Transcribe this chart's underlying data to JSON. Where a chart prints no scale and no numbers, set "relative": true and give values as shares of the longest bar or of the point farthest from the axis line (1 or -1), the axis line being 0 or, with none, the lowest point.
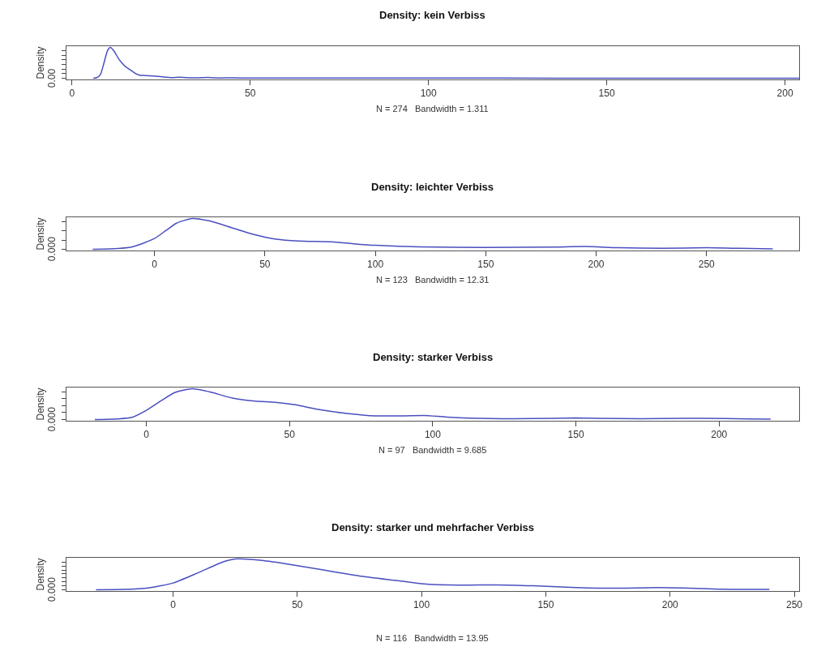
{
  "chart_data": [
    {
      "type": "line",
      "title": "Density: kein Verbiss",
      "xlabel": "N = 274   Bandwidth = 1.311",
      "ylabel": "Density",
      "relative": true,
      "color": "#4a4ec0",
      "xlim": [
        -1.6,
        204
      ],
      "xticks": [
        0,
        50,
        100,
        150,
        200
      ],
      "annotations": [
        "0.00"
      ],
      "marker": "none",
      "line_style": "solid",
      "x": [
        6,
        7,
        8,
        9,
        10,
        10.8,
        12,
        13,
        14,
        15,
        16,
        17,
        18,
        19,
        20,
        22,
        25,
        28,
        30,
        32,
        35,
        38,
        40,
        45,
        50,
        60,
        80,
        100,
        120,
        150,
        180,
        200,
        204
      ],
      "values": [
        0,
        0.02,
        0.12,
        0.5,
        0.9,
        1.0,
        0.85,
        0.65,
        0.5,
        0.38,
        0.3,
        0.22,
        0.14,
        0.1,
        0.09,
        0.08,
        0.05,
        0.02,
        0.03,
        0.02,
        0.01,
        0.025,
        0.01,
        0.01,
        0.005,
        0.004,
        0.003,
        0.003,
        0.003,
        0.002,
        0.002,
        0.002,
        0
      ]
    },
    {
      "type": "line",
      "title": "Density: leichter Verbiss",
      "xlabel": "N = 123   Bandwidth = 12.31",
      "ylabel": "Density",
      "relative": true,
      "color": "#4a4ec0",
      "xlim": [
        -40,
        292
      ],
      "xticks": [
        0,
        50,
        100,
        150,
        200,
        250
      ],
      "annotations": [
        "0.000"
      ],
      "marker": "none",
      "line_style": "solid",
      "x": [
        -28,
        -20,
        -10,
        0,
        5,
        10,
        17,
        25,
        35,
        45,
        55,
        65,
        80,
        90,
        100,
        120,
        150,
        180,
        195,
        210,
        230,
        250,
        265,
        280
      ],
      "values": [
        0,
        0.01,
        0.08,
        0.35,
        0.6,
        0.85,
        1.0,
        0.92,
        0.7,
        0.48,
        0.33,
        0.27,
        0.24,
        0.18,
        0.13,
        0.08,
        0.06,
        0.07,
        0.09,
        0.05,
        0.03,
        0.05,
        0.03,
        0.01
      ]
    },
    {
      "type": "line",
      "title": "Density: starker Verbiss",
      "xlabel": "N = 97   Bandwidth = 9.685",
      "ylabel": "Density",
      "relative": true,
      "color": "#4a4ec0",
      "xlim": [
        -28,
        228
      ],
      "xticks": [
        0,
        50,
        100,
        150,
        200
      ],
      "annotations": [
        "0.000"
      ],
      "marker": "none",
      "line_style": "solid",
      "x": [
        -18,
        -10,
        -5,
        0,
        5,
        10,
        16,
        22,
        30,
        38,
        45,
        52,
        60,
        70,
        80,
        90,
        97,
        105,
        120,
        135,
        150,
        165,
        180,
        195,
        210,
        218
      ],
      "values": [
        0,
        0.02,
        0.07,
        0.3,
        0.6,
        0.88,
        1.0,
        0.9,
        0.7,
        0.6,
        0.56,
        0.48,
        0.33,
        0.2,
        0.12,
        0.12,
        0.13,
        0.08,
        0.03,
        0.03,
        0.05,
        0.03,
        0.03,
        0.04,
        0.02,
        0.01
      ]
    },
    {
      "type": "line",
      "title": "Density: starker und mehrfacher Verbiss",
      "xlabel": "N = 116   Bandwidth = 13.95",
      "ylabel": "Density",
      "relative": true,
      "color": "#4a4ec0",
      "xlim": [
        -43,
        252
      ],
      "xticks": [
        0,
        50,
        100,
        150,
        200,
        250
      ],
      "annotations": [
        "0.000"
      ],
      "marker": "none",
      "line_style": "solid",
      "x": [
        -31,
        -20,
        -10,
        0,
        10,
        20,
        25,
        35,
        45,
        55,
        65,
        75,
        90,
        100,
        115,
        130,
        145,
        160,
        175,
        195,
        205,
        220,
        240
      ],
      "values": [
        0,
        0.01,
        0.06,
        0.22,
        0.55,
        0.9,
        1.0,
        0.96,
        0.85,
        0.72,
        0.58,
        0.45,
        0.3,
        0.2,
        0.15,
        0.16,
        0.13,
        0.08,
        0.05,
        0.07,
        0.06,
        0.02,
        0.01
      ]
    }
  ]
}
